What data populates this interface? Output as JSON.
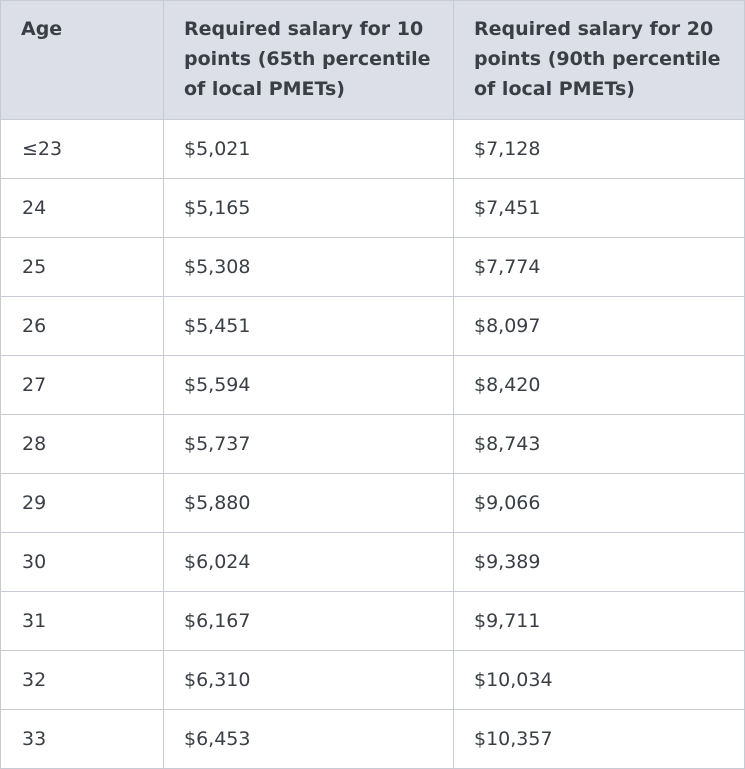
{
  "table": {
    "headers": [
      "Age",
      "Required salary for 10 points (65th percentile of local PMETs)",
      "Required salary for 20 points (90th percentile of local PMETs)"
    ],
    "rows": [
      [
        "≤23",
        "$5,021",
        "$7,128"
      ],
      [
        "24",
        "$5,165",
        "$7,451"
      ],
      [
        "25",
        "$5,308",
        "$7,774"
      ],
      [
        "26",
        "$5,451",
        "$8,097"
      ],
      [
        "27",
        "$5,594",
        "$8,420"
      ],
      [
        "28",
        "$5,737",
        "$8,743"
      ],
      [
        "29",
        "$5,880",
        "$9,066"
      ],
      [
        "30",
        "$6,024",
        "$9,389"
      ],
      [
        "31",
        "$6,167",
        "$9,711"
      ],
      [
        "32",
        "$6,310",
        "$10,034"
      ],
      [
        "33",
        "$6,453",
        "$10,357"
      ]
    ]
  }
}
